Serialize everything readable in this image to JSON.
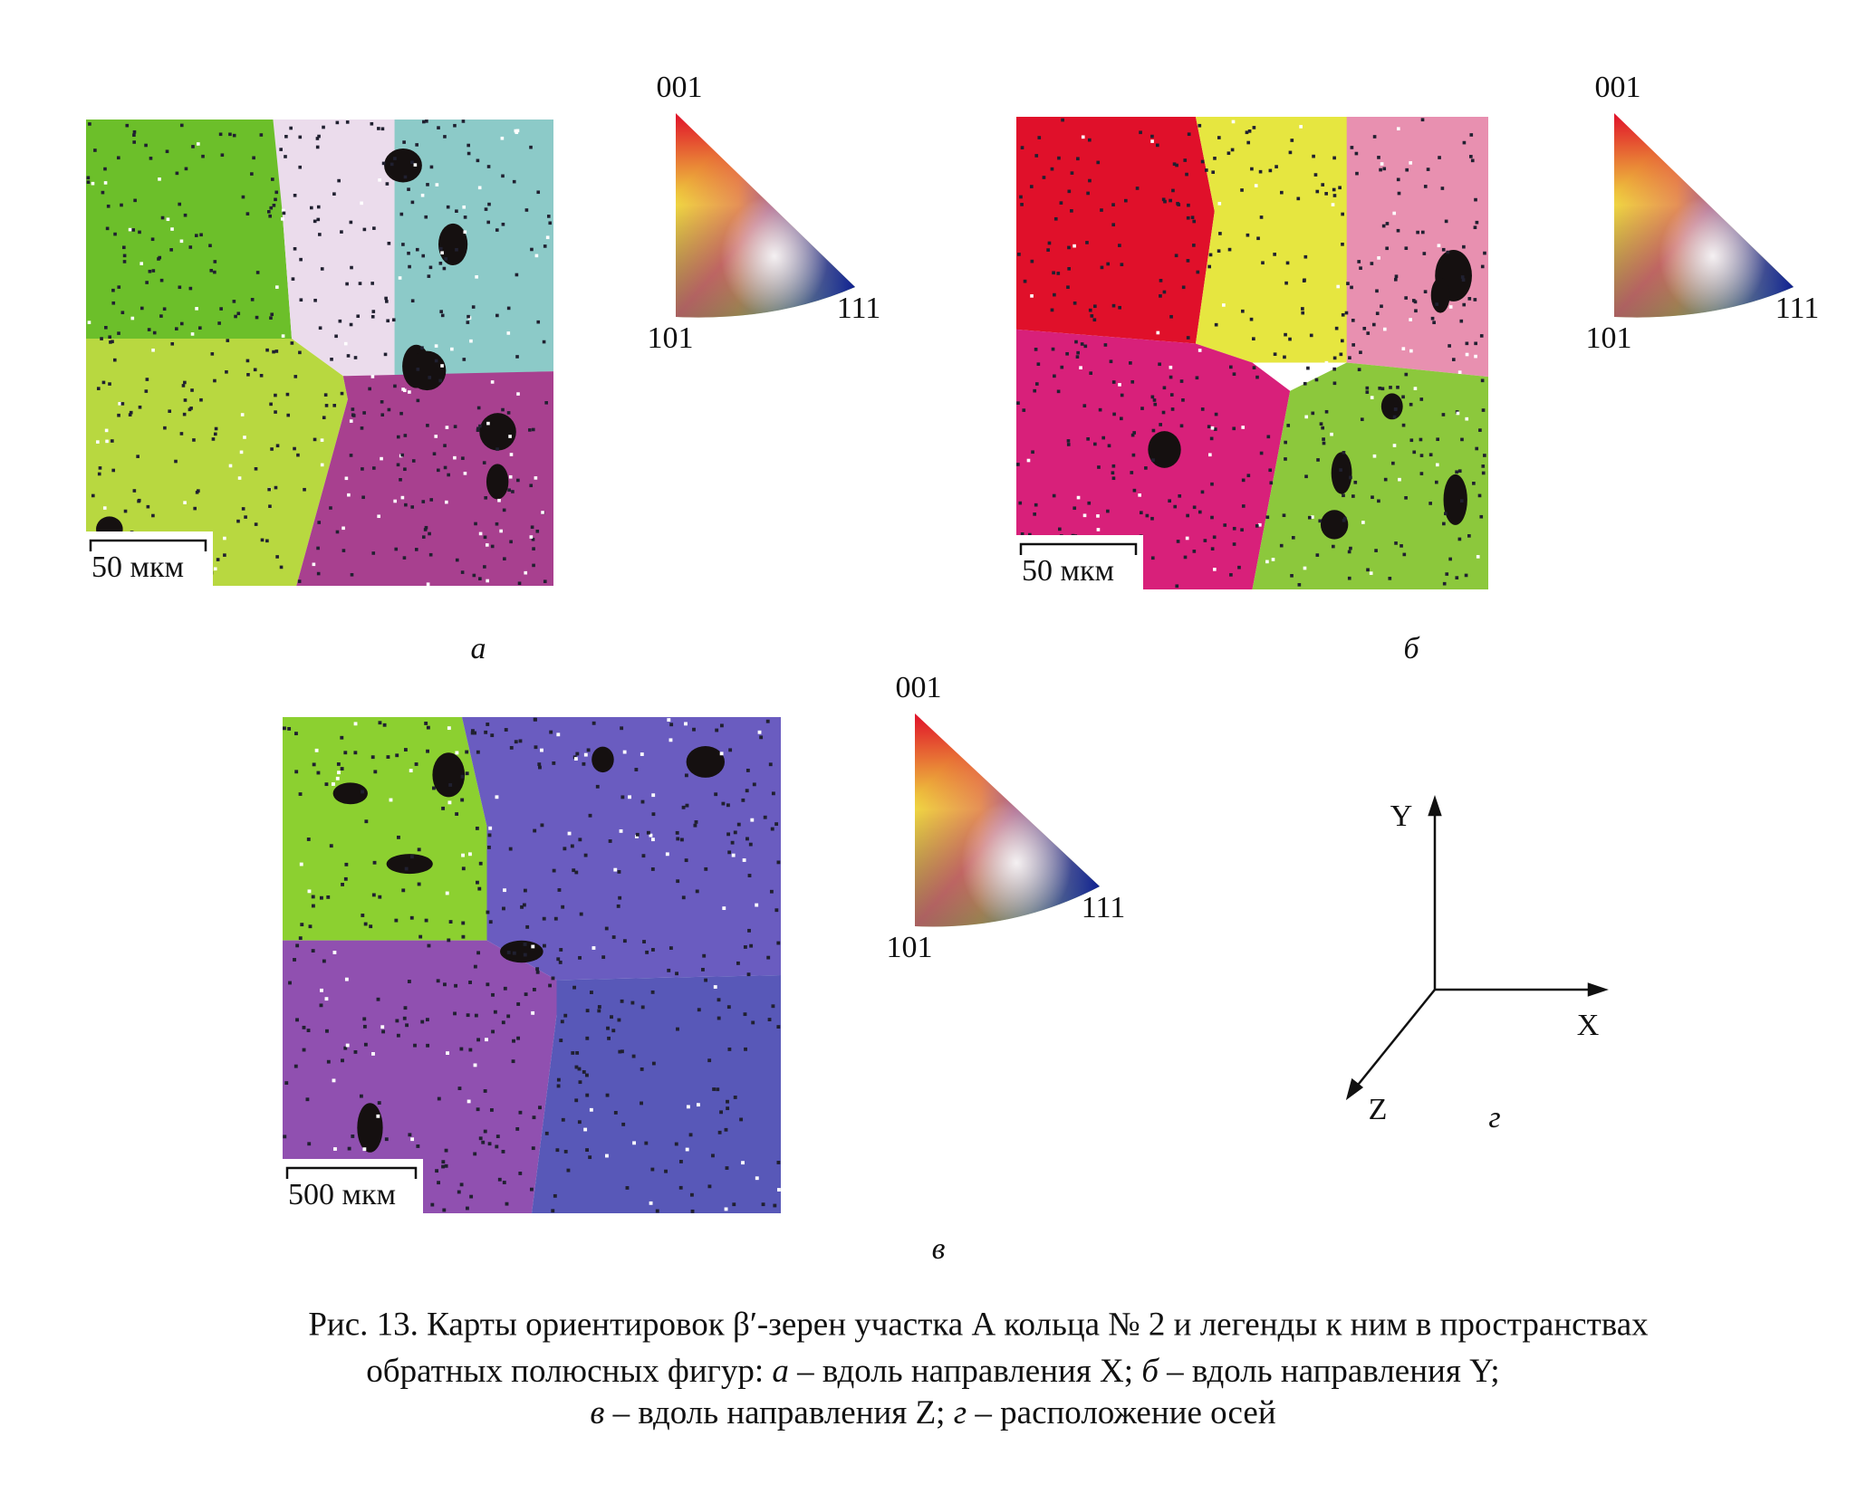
{
  "panels": [
    {
      "scale_bar": "50 мкм",
      "legend": {
        "top": "001",
        "left": "101",
        "right": "111"
      },
      "label": "а"
    },
    {
      "scale_bar": "50 мкм",
      "legend": {
        "top": "001",
        "left": "101",
        "right": "111"
      },
      "label": "б"
    },
    {
      "scale_bar": "500 мкм",
      "legend": {
        "top": "001",
        "left": "101",
        "right": "111"
      },
      "label": "в"
    }
  ],
  "axes": {
    "y": "Y",
    "x": "X",
    "z": "Z",
    "label": "г"
  },
  "caption": {
    "line1": "Рис. 13. Карты ориентировок β′-зерен участка А кольца № 2 и легенды к ним в пространствах",
    "line2": [
      "обратных полюсных фигур: ",
      "а",
      " – вдоль направления X; ",
      "б",
      " – вдоль направления Y;"
    ],
    "line3": [
      "в",
      " – вдоль направления Z; ",
      "г",
      " – расположение осей"
    ]
  }
}
